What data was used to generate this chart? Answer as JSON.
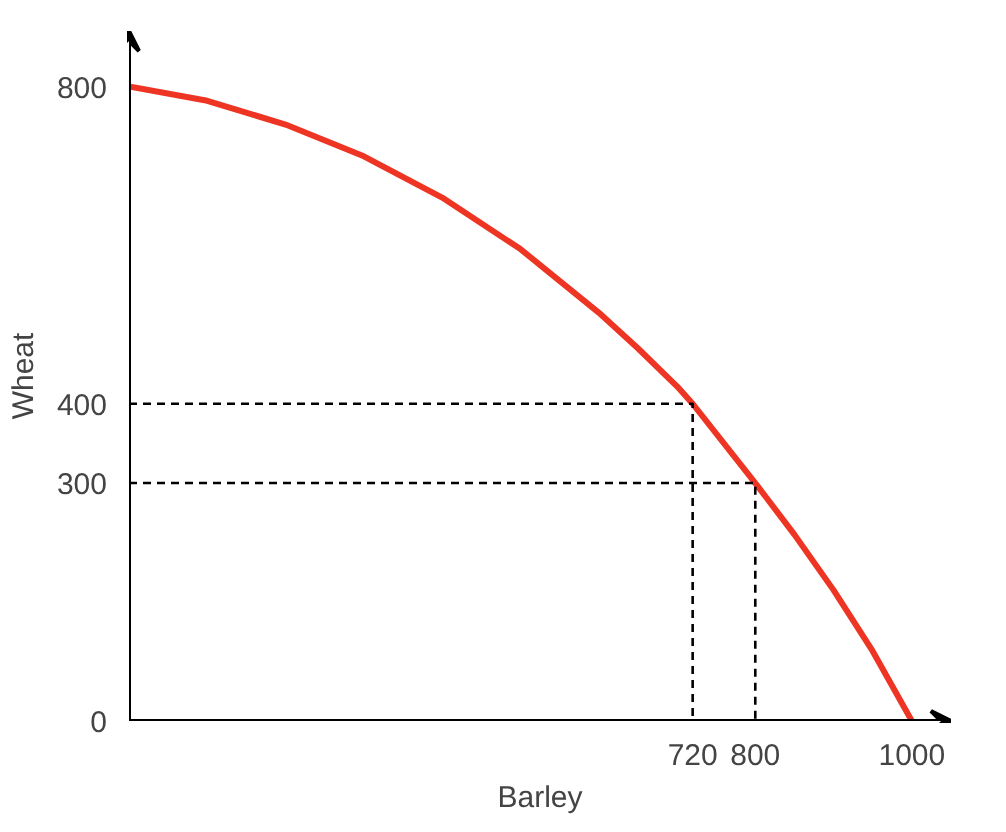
{
  "chart_data": {
    "type": "line",
    "xlabel": "Barley",
    "ylabel": "Wheat",
    "xlim": [
      0,
      1050
    ],
    "ylim": [
      0,
      870
    ],
    "xticks": [
      720,
      800,
      1000
    ],
    "yticks": [
      0,
      300,
      400,
      800
    ],
    "grid": false,
    "marker": "none",
    "series": [
      {
        "color": "#ee3524",
        "line_style": "solid",
        "x": [
          0,
          100,
          200,
          300,
          400,
          500,
          600,
          650,
          700,
          720,
          800,
          850,
          900,
          950,
          1000
        ],
        "values": [
          800,
          782,
          752,
          712,
          660,
          595,
          515,
          470,
          422,
          400,
          300,
          235,
          165,
          88,
          0
        ]
      },
      {
        "color": "#000000",
        "line_style": "dashed",
        "x": [
          0,
          720,
          720
        ],
        "values": [
          400,
          400,
          0
        ]
      },
      {
        "color": "#000000",
        "line_style": "dashed",
        "x": [
          0,
          800,
          800
        ],
        "values": [
          300,
          300,
          0
        ]
      }
    ]
  }
}
